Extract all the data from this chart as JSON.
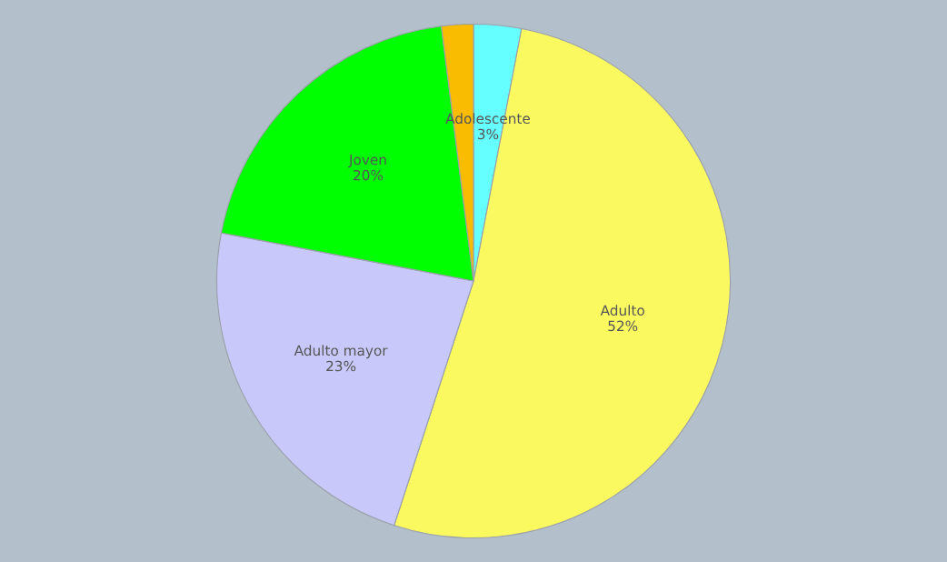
{
  "chart_data": {
    "type": "pie",
    "categories": [
      "Adolescente",
      "Adulto",
      "Adulto mayor",
      "Joven",
      null
    ],
    "values": [
      3,
      52,
      23,
      20,
      2
    ],
    "value_labels": [
      "3%",
      "52%",
      "23%",
      "20%",
      null
    ],
    "colors": [
      "#66ffff",
      "#fafa60",
      "#c8c8fa",
      "#00ff00",
      "#f9bc00"
    ],
    "legend": false
  }
}
